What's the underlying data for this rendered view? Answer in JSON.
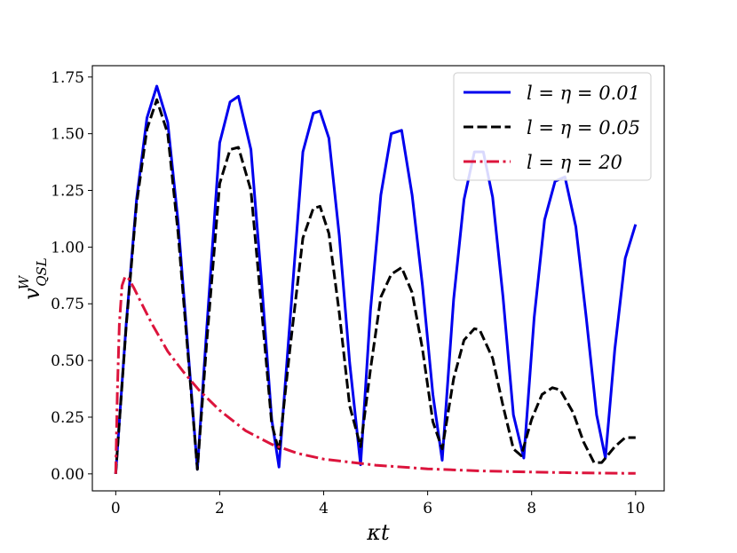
{
  "chart_data": {
    "type": "line",
    "xlabel": "κt",
    "ylabel": "v",
    "ylabel_sup": "W",
    "ylabel_sub": "QSL",
    "xlim": [
      -0.45,
      10.55
    ],
    "ylim": [
      -0.075,
      1.8
    ],
    "xticks": [
      0,
      2,
      4,
      6,
      8,
      10
    ],
    "xtick_labels": [
      "0",
      "2",
      "4",
      "6",
      "8",
      "10"
    ],
    "yticks": [
      0.0,
      0.25,
      0.5,
      0.75,
      1.0,
      1.25,
      1.5,
      1.75
    ],
    "ytick_labels": [
      "0.00",
      "0.25",
      "0.50",
      "0.75",
      "1.00",
      "1.25",
      "1.50",
      "1.75"
    ],
    "grid": false,
    "legend_position": "top-right",
    "series": [
      {
        "name": "l = η = 0.01",
        "color": "#0000ee",
        "style": "solid",
        "x": [
          0,
          0.2,
          0.4,
          0.6,
          0.79,
          1.0,
          1.2,
          1.4,
          1.57,
          1.75,
          2.0,
          2.2,
          2.36,
          2.6,
          2.8,
          3.0,
          3.14,
          3.35,
          3.6,
          3.8,
          3.93,
          4.1,
          4.3,
          4.5,
          4.71,
          4.9,
          5.1,
          5.3,
          5.5,
          5.7,
          5.9,
          6.1,
          6.28,
          6.5,
          6.7,
          6.9,
          7.07,
          7.25,
          7.45,
          7.65,
          7.85,
          8.05,
          8.25,
          8.45,
          8.64,
          8.85,
          9.05,
          9.25,
          9.42,
          9.6,
          9.8,
          10.0
        ],
        "y": [
          0.0,
          0.66,
          1.21,
          1.57,
          1.71,
          1.55,
          1.11,
          0.52,
          0.02,
          0.64,
          1.46,
          1.64,
          1.665,
          1.43,
          0.86,
          0.24,
          0.03,
          0.67,
          1.42,
          1.59,
          1.6,
          1.48,
          1.05,
          0.49,
          0.04,
          0.72,
          1.23,
          1.5,
          1.515,
          1.23,
          0.83,
          0.35,
          0.06,
          0.77,
          1.21,
          1.42,
          1.42,
          1.22,
          0.78,
          0.26,
          0.07,
          0.69,
          1.12,
          1.29,
          1.31,
          1.09,
          0.69,
          0.26,
          0.07,
          0.55,
          0.95,
          1.1
        ]
      },
      {
        "name": "l = η = 0.05",
        "color": "#000000",
        "style": "dashed",
        "x": [
          0,
          0.2,
          0.4,
          0.6,
          0.79,
          1.0,
          1.2,
          1.4,
          1.57,
          1.75,
          2.0,
          2.2,
          2.36,
          2.6,
          2.8,
          3.0,
          3.14,
          3.35,
          3.6,
          3.8,
          3.93,
          4.1,
          4.3,
          4.5,
          4.71,
          4.9,
          5.1,
          5.3,
          5.5,
          5.7,
          5.9,
          6.1,
          6.28,
          6.5,
          6.7,
          6.9,
          7.0,
          7.25,
          7.45,
          7.65,
          7.8,
          8.0,
          8.2,
          8.4,
          8.55,
          8.8,
          9.0,
          9.2,
          9.35,
          9.6,
          9.8,
          10.0
        ],
        "y": [
          0.0,
          0.65,
          1.19,
          1.52,
          1.65,
          1.5,
          1.06,
          0.5,
          0.02,
          0.58,
          1.28,
          1.43,
          1.44,
          1.25,
          0.74,
          0.22,
          0.1,
          0.55,
          1.04,
          1.17,
          1.18,
          1.06,
          0.71,
          0.3,
          0.12,
          0.46,
          0.78,
          0.88,
          0.91,
          0.8,
          0.55,
          0.23,
          0.11,
          0.42,
          0.59,
          0.64,
          0.635,
          0.51,
          0.3,
          0.11,
          0.08,
          0.24,
          0.35,
          0.38,
          0.37,
          0.27,
          0.14,
          0.05,
          0.05,
          0.12,
          0.16,
          0.16
        ]
      },
      {
        "name": "l = η = 20",
        "color": "#dc143c",
        "style": "dashdot",
        "x": [
          0,
          0.03,
          0.07,
          0.12,
          0.18,
          0.25,
          0.35,
          0.5,
          0.7,
          1.0,
          1.3,
          1.6,
          2.0,
          2.5,
          3.0,
          3.5,
          4.0,
          5.0,
          6.0,
          7.0,
          8.0,
          9.0,
          10.0
        ],
        "y": [
          0.0,
          0.35,
          0.66,
          0.83,
          0.87,
          0.86,
          0.82,
          0.75,
          0.66,
          0.54,
          0.45,
          0.37,
          0.28,
          0.19,
          0.13,
          0.09,
          0.065,
          0.038,
          0.022,
          0.013,
          0.008,
          0.004,
          0.002
        ]
      }
    ]
  }
}
